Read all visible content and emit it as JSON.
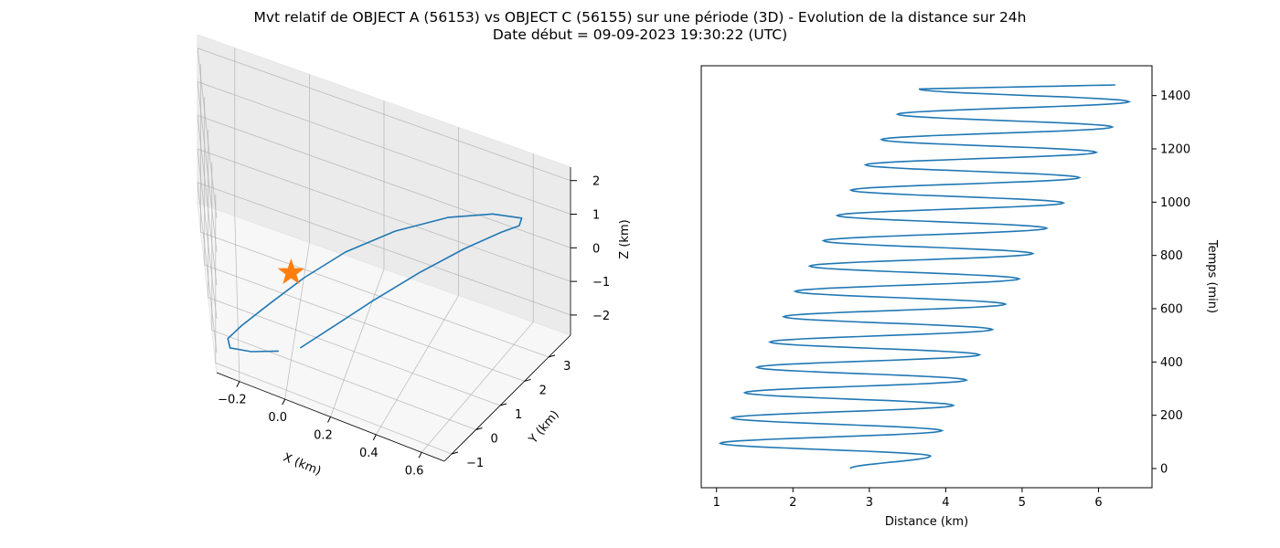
{
  "title": "Mvt relatif de OBJECT A (56153) vs OBJECT C (56155) sur une période (3D) - Evolution de la distance sur 24h",
  "subtitle": "Date début = 09-09-2023 19:30:22 (UTC)",
  "colors": {
    "series": "#1f77b4",
    "marker": "#ff7f0e",
    "grid": "#b0b0b0"
  },
  "chart_data": [
    {
      "type": "line3d",
      "xlabel": "X (km)",
      "ylabel": "Y (km)",
      "zlabel": "Z (km)",
      "xlim": [
        -0.3,
        0.7
      ],
      "ylim": [
        -1.3,
        3.9
      ],
      "zlim": [
        -2.6,
        2.4
      ],
      "xticks": [
        "−0.2",
        "0.0",
        "0.2",
        "0.4",
        "0.6"
      ],
      "yticks": [
        "−1",
        "0",
        "1",
        "2",
        "3"
      ],
      "zticks": [
        "−2",
        "−1",
        "0",
        "1",
        "2"
      ],
      "grid": true,
      "marker": {
        "symbol": "star",
        "x": 0.0,
        "y": 0.0,
        "z": 0.0
      },
      "trajectory": [
        {
          "x": 0.04,
          "y": -0.25,
          "z": -1.9
        },
        {
          "x": 0.15,
          "y": 0.35,
          "z": -1.45
        },
        {
          "x": 0.26,
          "y": 1.05,
          "z": -0.95
        },
        {
          "x": 0.38,
          "y": 1.85,
          "z": -0.35
        },
        {
          "x": 0.48,
          "y": 2.55,
          "z": 0.15
        },
        {
          "x": 0.56,
          "y": 3.05,
          "z": 0.55
        },
        {
          "x": 0.6,
          "y": 3.25,
          "z": 0.75
        },
        {
          "x": 0.61,
          "y": 3.2,
          "z": 1.05
        },
        {
          "x": 0.55,
          "y": 2.8,
          "z": 1.25
        },
        {
          "x": 0.45,
          "y": 2.2,
          "z": 1.25
        },
        {
          "x": 0.32,
          "y": 1.45,
          "z": 1.0
        },
        {
          "x": 0.18,
          "y": 0.7,
          "z": 0.55
        },
        {
          "x": 0.05,
          "y": 0.0,
          "z": 0.0
        },
        {
          "x": -0.08,
          "y": -0.7,
          "z": -0.55
        },
        {
          "x": -0.19,
          "y": -1.1,
          "z": -1.1
        },
        {
          "x": -0.25,
          "y": -1.2,
          "z": -1.55
        },
        {
          "x": -0.24,
          "y": -1.15,
          "z": -1.85
        },
        {
          "x": -0.15,
          "y": -0.85,
          "z": -2.0
        },
        {
          "x": -0.04,
          "y": -0.5,
          "z": -2.0
        }
      ]
    },
    {
      "type": "line",
      "xlabel": "Distance (km)",
      "ylabel": "Temps (min)",
      "xlim": [
        0.8,
        6.7
      ],
      "ylim": [
        -72,
        1512
      ],
      "xticks": [
        1,
        2,
        3,
        4,
        5,
        6
      ],
      "yticks": [
        0,
        200,
        400,
        600,
        800,
        1000,
        1200,
        1400
      ],
      "y_axis_side": "right",
      "period_min": 95,
      "start_time": 0,
      "end_time": 1440,
      "series": [
        {
          "peak_times": [
            47,
            142,
            237,
            332,
            427,
            522,
            617,
            712,
            807,
            902,
            997,
            1092,
            1187,
            1282,
            1377
          ],
          "max_distance": [
            3.8,
            3.95,
            4.1,
            4.27,
            4.44,
            4.61,
            4.78,
            4.96,
            5.14,
            5.32,
            5.54,
            5.75,
            5.97,
            6.18,
            6.4
          ],
          "trough_times": [
            0,
            95,
            190,
            285,
            380,
            475,
            570,
            665,
            760,
            855,
            950,
            1045,
            1140,
            1235,
            1330,
            1425
          ],
          "min_distance": [
            2.75,
            1.05,
            1.2,
            1.37,
            1.53,
            1.7,
            1.88,
            2.03,
            2.22,
            2.4,
            2.58,
            2.76,
            2.95,
            3.16,
            3.37,
            3.65
          ],
          "end_distance": 6.22
        }
      ]
    }
  ]
}
